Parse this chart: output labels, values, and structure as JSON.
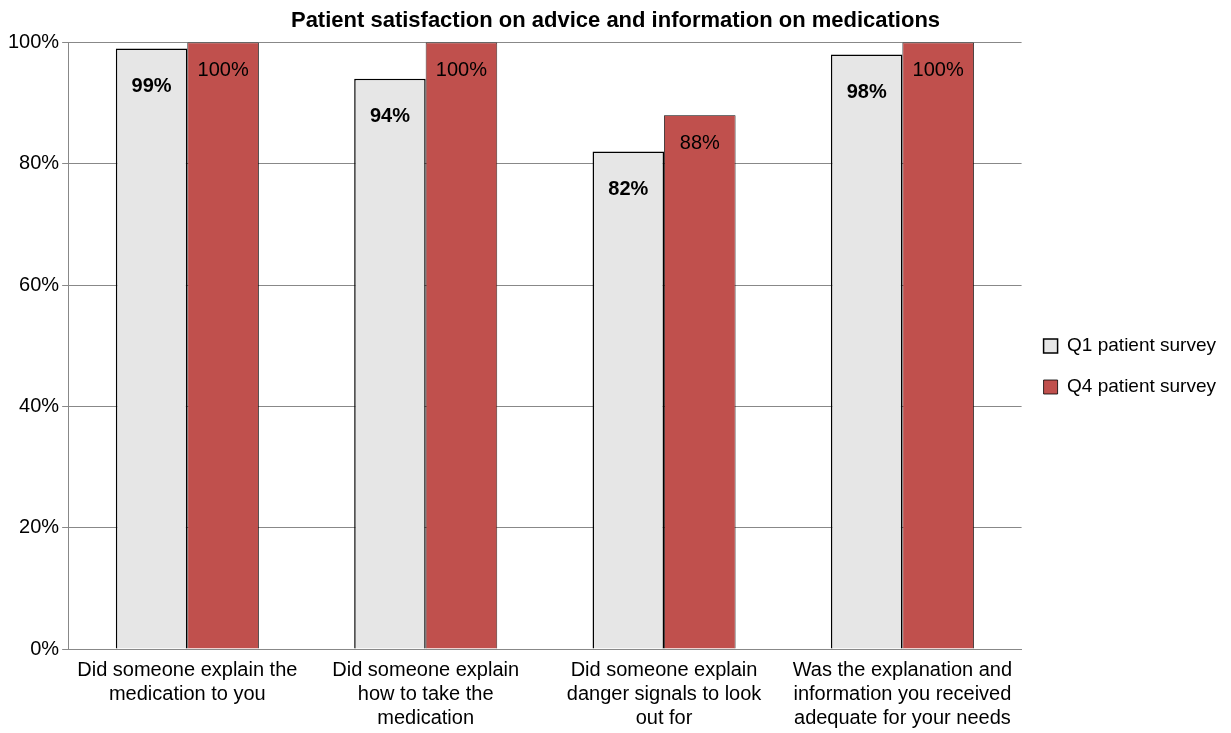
{
  "chart_data": {
    "type": "bar",
    "title": "Patient satisfaction on advice and information on medications",
    "categories": [
      "Did someone explain the medication to you",
      "Did someone explain how to take the medication",
      "Did someone explain danger signals to look out for",
      "Was the explanation and information you received adequate for your needs"
    ],
    "series": [
      {
        "name": "Q1 patient survey",
        "color": "#e6e6e6",
        "values": [
          99,
          94,
          82,
          98
        ],
        "value_labels": [
          "99%",
          "94%",
          "82%",
          "98%"
        ]
      },
      {
        "name": "Q4 patient survey",
        "color": "#c0504d",
        "values": [
          100,
          100,
          88,
          100
        ],
        "value_labels": [
          "100%",
          "100%",
          "88%",
          "100%"
        ]
      }
    ],
    "ylim": [
      0,
      100
    ],
    "yticks": [
      {
        "value": 0,
        "label": "0%"
      },
      {
        "value": 20,
        "label": "20%"
      },
      {
        "value": 40,
        "label": "40%"
      },
      {
        "value": 60,
        "label": "60%"
      },
      {
        "value": 80,
        "label": "80%"
      },
      {
        "value": 100,
        "label": "100%"
      }
    ],
    "grid": "y",
    "legend": "right"
  }
}
